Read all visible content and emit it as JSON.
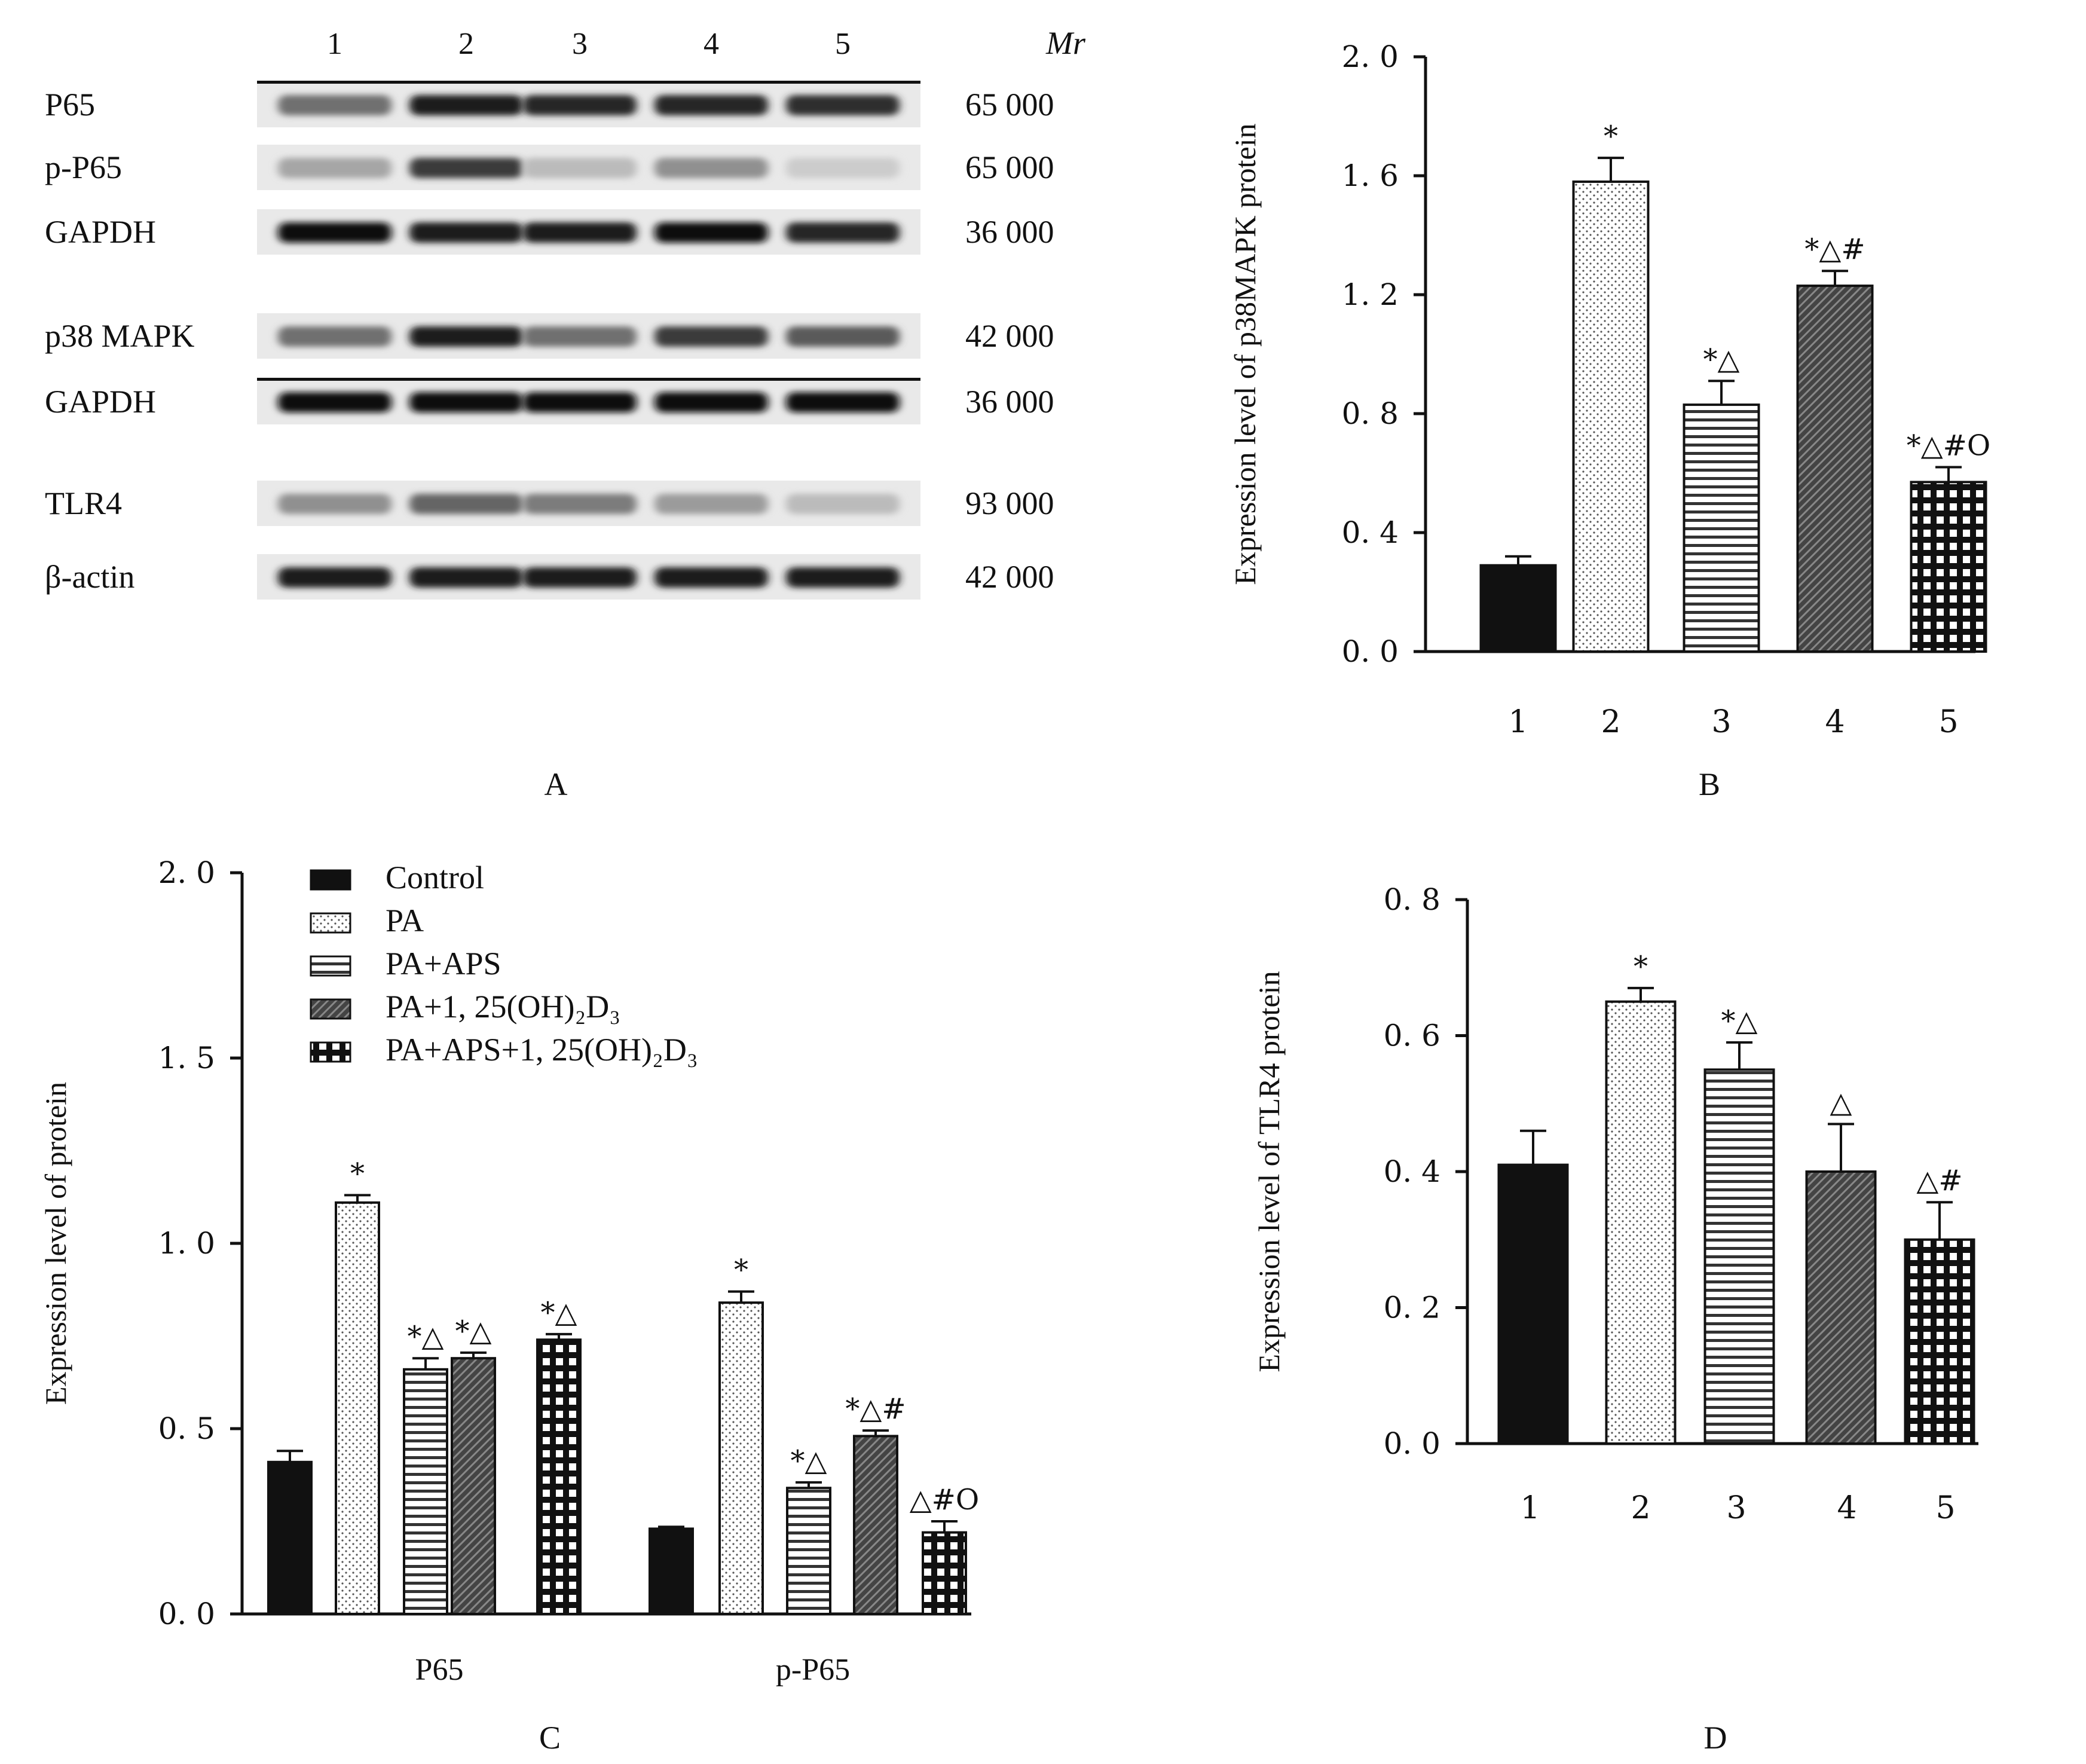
{
  "blot": {
    "lane_labels": [
      "1",
      "2",
      "3",
      "4",
      "5"
    ],
    "mr_header": "Mr",
    "rows": [
      {
        "label": "P65",
        "mr": "65 000",
        "intensity": [
          0.55,
          0.95,
          0.9,
          0.9,
          0.85
        ]
      },
      {
        "label": "p-P65",
        "mr": "65 000",
        "intensity": [
          0.3,
          0.8,
          0.2,
          0.4,
          0.12
        ]
      },
      {
        "label": "GAPDH",
        "mr": "36 000",
        "intensity": [
          1.0,
          0.95,
          0.95,
          1.0,
          0.9
        ]
      },
      {
        "label": "p38 MAPK",
        "mr": "42 000",
        "intensity": [
          0.55,
          0.95,
          0.55,
          0.8,
          0.65
        ]
      },
      {
        "label": "GAPDH",
        "mr": "36 000",
        "intensity": [
          1.0,
          1.0,
          1.0,
          1.0,
          1.0
        ]
      },
      {
        "label": "TLR4",
        "mr": "93 000",
        "intensity": [
          0.4,
          0.6,
          0.5,
          0.35,
          0.2
        ]
      },
      {
        "label": "β-actin",
        "mr": "42 000",
        "intensity": [
          0.95,
          0.95,
          0.95,
          0.95,
          0.95
        ]
      }
    ]
  },
  "panel_letters": {
    "A": "A",
    "B": "B",
    "C": "C",
    "D": "D"
  },
  "chart_data": [
    {
      "panel": "B",
      "type": "bar",
      "categories": [
        "1",
        "2",
        "3",
        "4",
        "5"
      ],
      "values": [
        0.29,
        1.58,
        0.83,
        1.23,
        0.57
      ],
      "errors": [
        0.03,
        0.08,
        0.08,
        0.05,
        0.05
      ],
      "annotations": [
        "",
        "*",
        "*△",
        "*△#",
        "*△#O"
      ],
      "ylabel": "Expression level of p38MAPK protein",
      "xlabel": "",
      "ylim": [
        0,
        2.0
      ],
      "yticks": [
        "0. 0",
        "0. 4",
        "0. 8",
        "1. 2",
        "1. 6",
        "2. 0"
      ]
    },
    {
      "panel": "C",
      "type": "bar",
      "categories": [
        "P65",
        "p-P65"
      ],
      "series": [
        {
          "name": "Control",
          "values": [
            0.41,
            0.23
          ],
          "errors": [
            0.03,
            0.005
          ],
          "annotations": [
            "",
            ""
          ]
        },
        {
          "name": "PA",
          "values": [
            1.11,
            0.84
          ],
          "errors": [
            0.02,
            0.03
          ],
          "annotations": [
            "*",
            "*"
          ]
        },
        {
          "name": "PA+APS",
          "values": [
            0.66,
            0.34
          ],
          "errors": [
            0.03,
            0.015
          ],
          "annotations": [
            "*△",
            "*△"
          ]
        },
        {
          "name": "PA+1, 25(OH)₂D₃",
          "values": [
            0.69,
            0.48
          ],
          "errors": [
            0.015,
            0.015
          ],
          "annotations": [
            "*△",
            "*△#"
          ]
        },
        {
          "name": "PA+APS+1, 25(OH)₂D₃",
          "values": [
            0.74,
            0.22
          ],
          "errors": [
            0.015,
            0.03
          ],
          "annotations": [
            "*△",
            "△#O"
          ]
        }
      ],
      "ylabel": "Expression level of protein",
      "xlabel": "",
      "ylim": [
        0,
        2.0
      ],
      "yticks": [
        "0. 0",
        "0. 5",
        "1. 0",
        "1. 5",
        "2. 0"
      ],
      "legend": "top-left"
    },
    {
      "panel": "D",
      "type": "bar",
      "categories": [
        "1",
        "2",
        "3",
        "4",
        "5"
      ],
      "values": [
        0.41,
        0.65,
        0.55,
        0.4,
        0.3
      ],
      "errors": [
        0.05,
        0.02,
        0.04,
        0.07,
        0.055
      ],
      "annotations": [
        "",
        "*",
        "*△",
        "△",
        "△#"
      ],
      "ylabel": "Expression level of  TLR4 protein",
      "xlabel": "",
      "ylim": [
        0,
        0.8
      ],
      "yticks": [
        "0. 0",
        "0. 2",
        "0. 4",
        "0. 6",
        "0. 8"
      ]
    }
  ]
}
